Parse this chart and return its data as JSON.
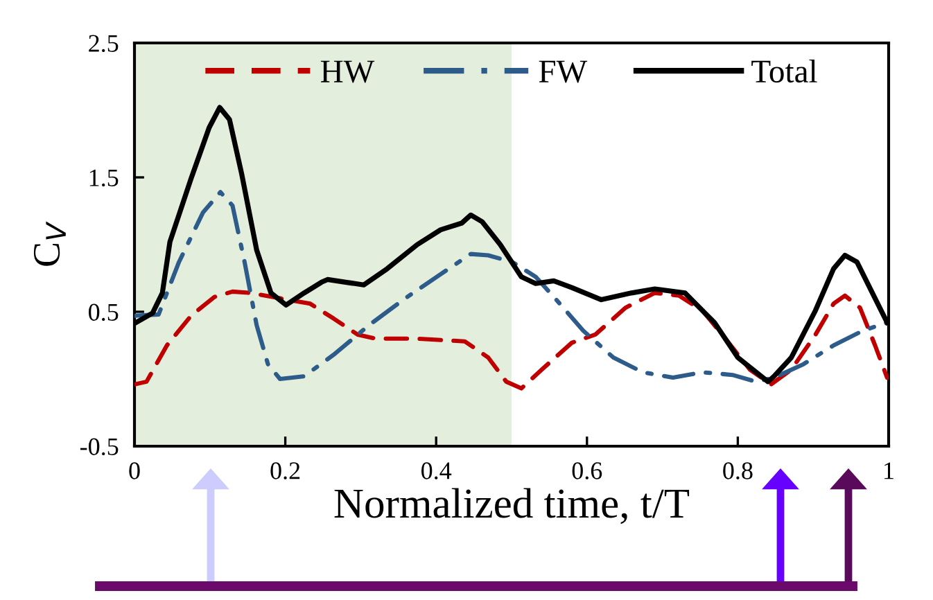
{
  "chart_data": {
    "type": "line",
    "xlabel": "Normalized time, t/T",
    "ylabel": "C$_{V}$",
    "xlim": [
      0,
      1
    ],
    "xticks": [
      0,
      0.2,
      0.4,
      0.6,
      0.8,
      1
    ],
    "ylim": [
      -0.5,
      2.5
    ],
    "yticks": [
      -0.5,
      0.5,
      1.5,
      2.5
    ],
    "grid": false,
    "legend": "top",
    "marker": "none",
    "bands": [
      {
        "axis": "x",
        "from": 0,
        "to": 0.5,
        "color": "#e3efdc"
      }
    ],
    "series": [
      {
        "name": "HW",
        "color": "#c00000",
        "line_style": "dashed",
        "x": [
          0,
          0.016,
          0.043,
          0.075,
          0.106,
          0.13,
          0.154,
          0.193,
          0.233,
          0.264,
          0.296,
          0.32,
          0.375,
          0.438,
          0.469,
          0.493,
          0.513,
          0.54,
          0.58,
          0.611,
          0.651,
          0.69,
          0.722,
          0.753,
          0.785,
          0.816,
          0.844,
          0.871,
          0.903,
          0.927,
          0.942,
          0.962,
          0.982,
          0.998
        ],
        "values": [
          -0.04,
          -0.02,
          0.25,
          0.47,
          0.61,
          0.65,
          0.64,
          0.6,
          0.56,
          0.45,
          0.33,
          0.3,
          0.3,
          0.28,
          0.16,
          -0.02,
          -0.07,
          0.07,
          0.27,
          0.33,
          0.53,
          0.64,
          0.62,
          0.51,
          0.29,
          0.07,
          -0.04,
          0.07,
          0.33,
          0.56,
          0.62,
          0.53,
          0.25,
          0.01
        ]
      },
      {
        "name": "FW",
        "color": "#2e5c8a",
        "line_style": "dashdot",
        "x": [
          0,
          0.032,
          0.059,
          0.091,
          0.114,
          0.13,
          0.146,
          0.162,
          0.177,
          0.193,
          0.225,
          0.264,
          0.311,
          0.359,
          0.406,
          0.446,
          0.469,
          0.501,
          0.532,
          0.564,
          0.595,
          0.635,
          0.674,
          0.714,
          0.753,
          0.793,
          0.824,
          0.848,
          0.887,
          0.927,
          0.966,
          0.998
        ],
        "values": [
          0.47,
          0.48,
          0.87,
          1.24,
          1.39,
          1.29,
          0.87,
          0.4,
          0.11,
          0.0,
          0.02,
          0.18,
          0.4,
          0.6,
          0.78,
          0.93,
          0.92,
          0.87,
          0.76,
          0.56,
          0.36,
          0.16,
          0.05,
          0.01,
          0.05,
          0.03,
          -0.02,
          0.01,
          0.11,
          0.25,
          0.36,
          0.42
        ]
      },
      {
        "name": "Total",
        "color": "#000000",
        "line_style": "solid",
        "x": [
          0.002,
          0.024,
          0.037,
          0.047,
          0.075,
          0.099,
          0.113,
          0.126,
          0.142,
          0.162,
          0.181,
          0.201,
          0.225,
          0.248,
          0.256,
          0.28,
          0.304,
          0.335,
          0.375,
          0.406,
          0.434,
          0.446,
          0.461,
          0.485,
          0.513,
          0.532,
          0.556,
          0.58,
          0.619,
          0.659,
          0.69,
          0.73,
          0.769,
          0.8,
          0.84,
          0.848,
          0.871,
          0.903,
          0.927,
          0.942,
          0.958,
          0.982,
          0.998
        ],
        "values": [
          0.42,
          0.49,
          0.64,
          1.02,
          1.49,
          1.87,
          2.02,
          1.93,
          1.53,
          0.96,
          0.64,
          0.55,
          0.64,
          0.72,
          0.74,
          0.72,
          0.7,
          0.82,
          1.0,
          1.11,
          1.16,
          1.22,
          1.17,
          1.0,
          0.76,
          0.71,
          0.73,
          0.68,
          0.59,
          0.64,
          0.67,
          0.64,
          0.42,
          0.16,
          -0.02,
          0.02,
          0.16,
          0.51,
          0.82,
          0.92,
          0.87,
          0.6,
          0.42
        ]
      }
    ]
  }
}
